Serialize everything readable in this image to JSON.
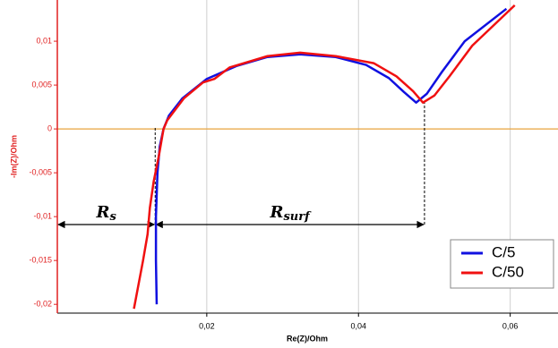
{
  "chart_data": {
    "type": "line",
    "x_label": "Re(Z)/Ohm",
    "y_label": "-Im(Z)/Ohm",
    "xlim": [
      0.0003,
      0.0663
    ],
    "ylim": [
      -0.021,
      0.0147
    ],
    "xticks": [
      {
        "value": 0.02,
        "label": "0,02"
      },
      {
        "value": 0.04,
        "label": "0,04"
      },
      {
        "value": 0.06,
        "label": "0,06"
      }
    ],
    "yticks": [
      {
        "value": -0.02,
        "label": "-0,02"
      },
      {
        "value": -0.015,
        "label": "-0,015"
      },
      {
        "value": -0.01,
        "label": "-0,01"
      },
      {
        "value": -0.005,
        "label": "-0,005"
      },
      0,
      {
        "value": 0.005,
        "label": "0,005"
      },
      {
        "value": 0.01,
        "label": "0,01"
      }
    ],
    "grid": true,
    "legend": "lower right",
    "zero_line_color": "#e8a33c",
    "series": [
      {
        "name": "C/5",
        "color": "#1010e0",
        "x": [
          0.0134,
          0.0133,
          0.0133,
          0.0135,
          0.0138,
          0.0143,
          0.015,
          0.0168,
          0.02,
          0.024,
          0.028,
          0.0323,
          0.037,
          0.041,
          0.044,
          0.046,
          0.0476,
          0.049,
          0.051,
          0.054,
          0.0595
        ],
        "values": [
          -0.02,
          -0.015,
          -0.01,
          -0.005,
          -0.002,
          0,
          0.0015,
          0.0035,
          0.0057,
          0.0072,
          0.0082,
          0.0085,
          0.0082,
          0.0073,
          0.0058,
          0.0042,
          0.003,
          0.004,
          0.0065,
          0.01,
          0.0137
        ]
      },
      {
        "name": "C/50",
        "color": "#f01010",
        "x": [
          0.0104,
          0.0116,
          0.0122,
          0.0125,
          0.013,
          0.0137,
          0.0143,
          0.0148,
          0.0155,
          0.017,
          0.0195,
          0.021,
          0.023,
          0.028,
          0.0323,
          0.037,
          0.042,
          0.045,
          0.0472,
          0.0485,
          0.05,
          0.052,
          0.055,
          0.0606
        ],
        "values": [
          -0.0205,
          -0.015,
          -0.012,
          -0.009,
          -0.006,
          -0.003,
          0,
          0.001,
          0.0018,
          0.0035,
          0.0053,
          0.0057,
          0.007,
          0.0083,
          0.0087,
          0.0083,
          0.0075,
          0.006,
          0.0043,
          0.003,
          0.0038,
          0.006,
          0.0095,
          0.0141
        ]
      }
    ],
    "annotations": [
      {
        "text": "R",
        "subscript": "s",
        "x_start": 0.0003,
        "x_end": 0.0132,
        "y": -0.0109,
        "dash_top": 0.0003
      },
      {
        "text": "R",
        "subscript": "surf",
        "x_start": 0.0132,
        "x_end": 0.0487,
        "y": -0.0109,
        "dash_top": 0.003
      }
    ]
  }
}
